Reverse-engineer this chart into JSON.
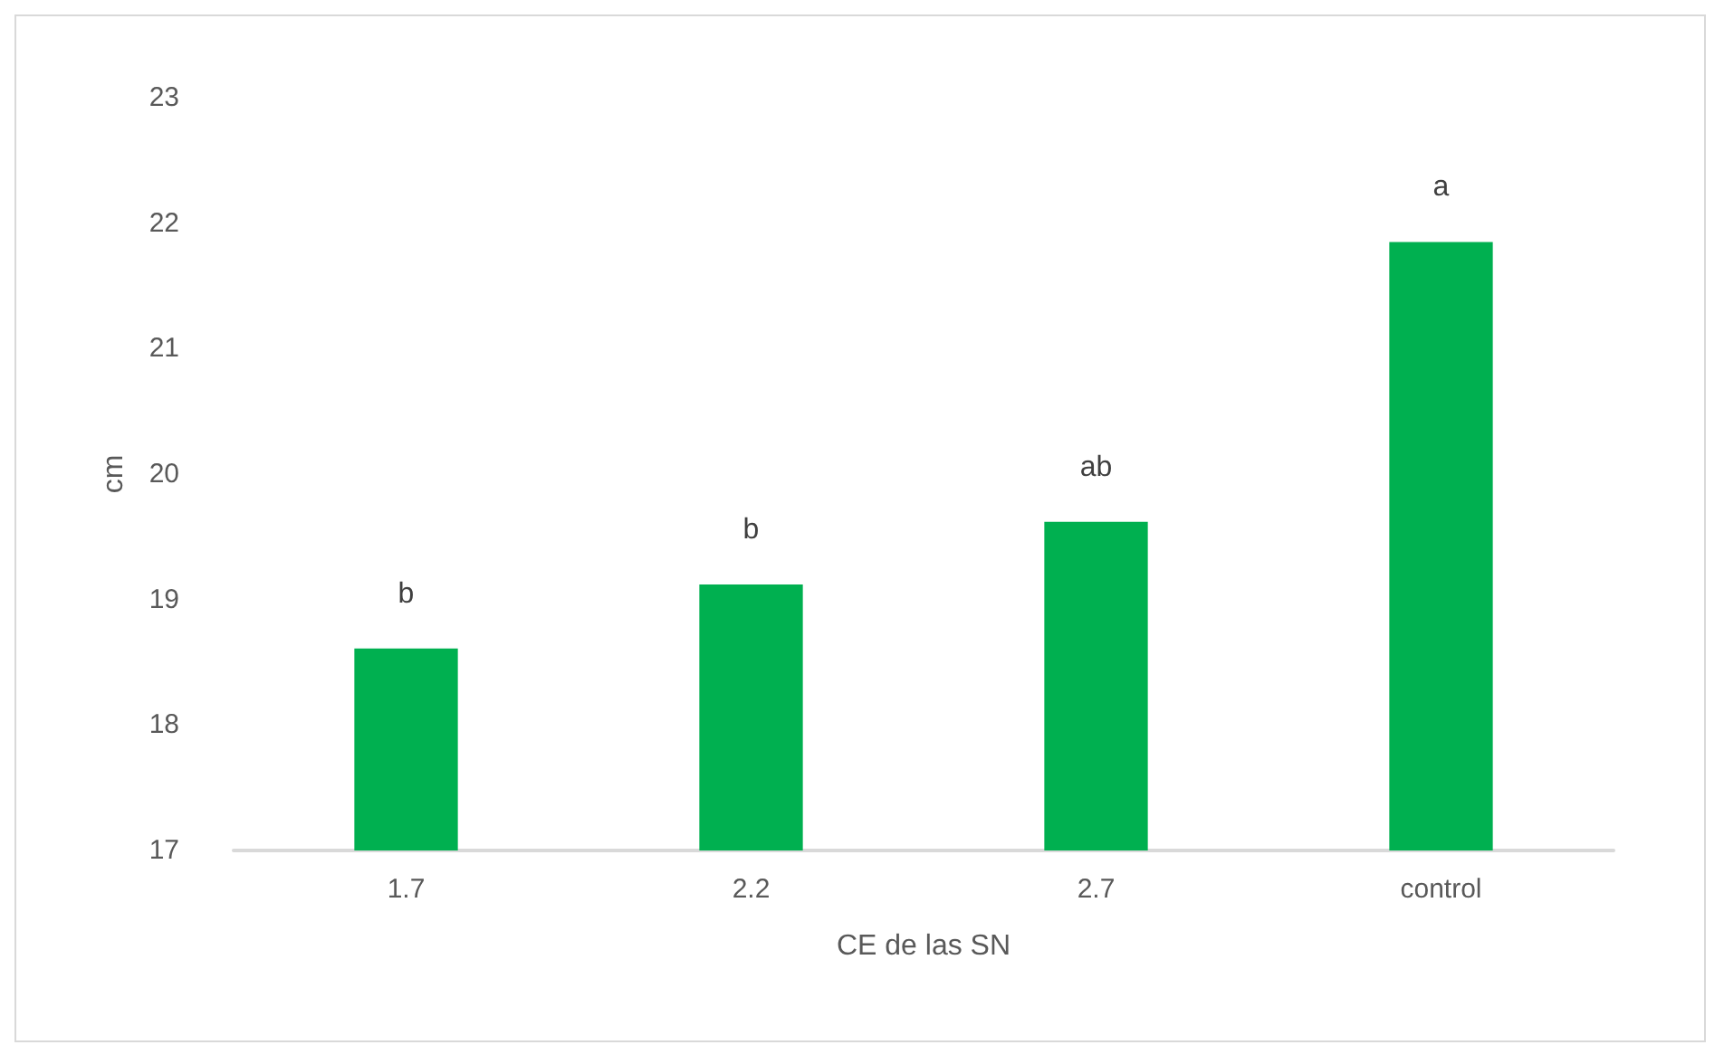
{
  "chart_data": {
    "type": "bar",
    "xlabel": "CE de las SN",
    "ylabel": "cm",
    "categories": [
      "1.7",
      "2.2",
      "2.7",
      "control"
    ],
    "values": [
      18.61,
      19.12,
      19.62,
      21.85
    ],
    "color": "#00b050",
    "ylim": [
      17,
      23
    ],
    "yticks": [
      17,
      18,
      19,
      20,
      21,
      22,
      23
    ],
    "grid": false,
    "annotations": [
      {
        "text": "b",
        "x": "1.7",
        "y": 18.61
      },
      {
        "text": "b",
        "x": "2.2",
        "y": 19.12
      },
      {
        "text": "ab",
        "x": "2.7",
        "y": 19.62
      },
      {
        "text": "a",
        "x": "control",
        "y": 21.85
      }
    ]
  }
}
